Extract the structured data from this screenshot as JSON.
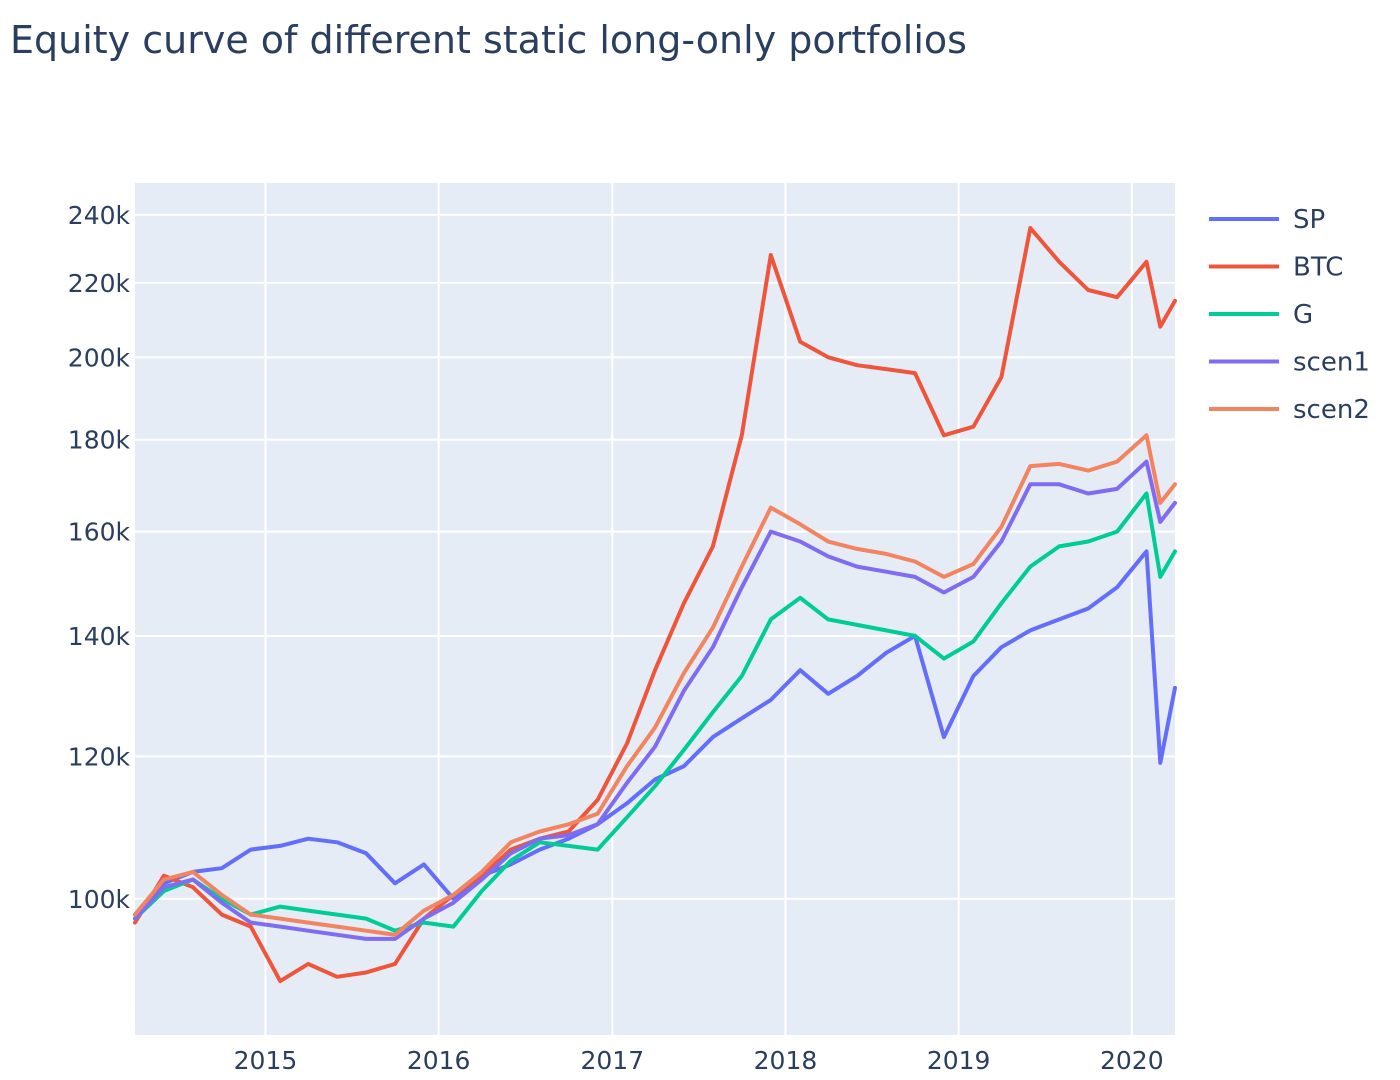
{
  "chart_data": {
    "type": "line",
    "title": "Equity curve of different static long-only portfolios",
    "xlabel": "",
    "ylabel": "",
    "x_ticks": [
      "2015",
      "2016",
      "2017",
      "2018",
      "2019",
      "2020"
    ],
    "y_scale": "log",
    "y_ticks": [
      100000,
      120000,
      140000,
      160000,
      180000,
      200000,
      220000,
      240000
    ],
    "y_tick_labels": [
      "100k",
      "120k",
      "140k",
      "160k",
      "180k",
      "200k",
      "220k",
      "240k"
    ],
    "xlim": [
      "2014-04-01",
      "2020-04-01"
    ],
    "ylim": [
      84000,
      250000
    ],
    "grid": true,
    "legend_position": "right",
    "x": [
      "2014-04",
      "2014-06",
      "2014-08",
      "2014-10",
      "2014-12",
      "2015-02",
      "2015-04",
      "2015-06",
      "2015-08",
      "2015-10",
      "2015-12",
      "2016-02",
      "2016-04",
      "2016-06",
      "2016-08",
      "2016-10",
      "2016-12",
      "2017-02",
      "2017-04",
      "2017-06",
      "2017-08",
      "2017-10",
      "2017-12",
      "2018-02",
      "2018-04",
      "2018-06",
      "2018-08",
      "2018-10",
      "2018-12",
      "2019-02",
      "2019-04",
      "2019-06",
      "2019-08",
      "2019-10",
      "2019-12",
      "2020-02",
      "2020-03",
      "2020-04"
    ],
    "series": [
      {
        "name": "SP",
        "color": "#636efa",
        "values": [
          98000,
          102000,
          103500,
          104000,
          106500,
          107000,
          108000,
          107500,
          106000,
          102000,
          104500,
          100000,
          103000,
          104500,
          106500,
          108000,
          110000,
          113000,
          116500,
          118500,
          123000,
          126000,
          129000,
          134000,
          130000,
          133000,
          137000,
          140000,
          123000,
          133000,
          138000,
          141000,
          143000,
          145000,
          149000,
          156000,
          119000,
          131000
        ]
      },
      {
        "name": "BTC",
        "color": "#ef553b",
        "values": [
          97000,
          103000,
          101500,
          98000,
          96500,
          90000,
          92000,
          90500,
          91000,
          92000,
          97500,
          100500,
          103000,
          106500,
          108000,
          109000,
          113500,
          122000,
          134000,
          146000,
          157000,
          181000,
          228000,
          204000,
          200000,
          198000,
          197000,
          196000,
          181000,
          183000,
          195000,
          236000,
          226000,
          218000,
          216000,
          226000,
          208000,
          215000
        ]
      },
      {
        "name": "G",
        "color": "#00cc96",
        "values": [
          97500,
          101000,
          102500,
          100000,
          98000,
          99000,
          98500,
          98000,
          97500,
          96000,
          97000,
          96500,
          101000,
          105000,
          107500,
          107000,
          106500,
          111000,
          115500,
          121000,
          127000,
          133000,
          143000,
          147000,
          143000,
          142000,
          141000,
          140000,
          136000,
          139000,
          146000,
          153000,
          157000,
          158000,
          160000,
          168000,
          151000,
          156000
        ]
      },
      {
        "name": "scen1",
        "color": "#7f6cf0",
        "values": [
          97500,
          101500,
          102500,
          99500,
          97000,
          96500,
          96000,
          95500,
          95000,
          95000,
          97500,
          99500,
          102500,
          106000,
          108000,
          108500,
          110000,
          116000,
          121500,
          130500,
          138000,
          149000,
          160000,
          158000,
          155000,
          153000,
          152000,
          151000,
          148000,
          151000,
          158000,
          170000,
          170000,
          168000,
          169000,
          175000,
          162000,
          166000
        ]
      },
      {
        "name": "scen2",
        "color": "#f2845f",
        "values": [
          98000,
          102500,
          103500,
          100500,
          98000,
          97500,
          97000,
          96500,
          96000,
          95500,
          98500,
          100500,
          103500,
          107500,
          109000,
          110000,
          111500,
          118500,
          124500,
          133500,
          141500,
          153000,
          165000,
          161500,
          158000,
          156500,
          155500,
          154000,
          151000,
          153500,
          161000,
          174000,
          174500,
          173000,
          175000,
          181000,
          166000,
          170000
        ]
      }
    ]
  }
}
